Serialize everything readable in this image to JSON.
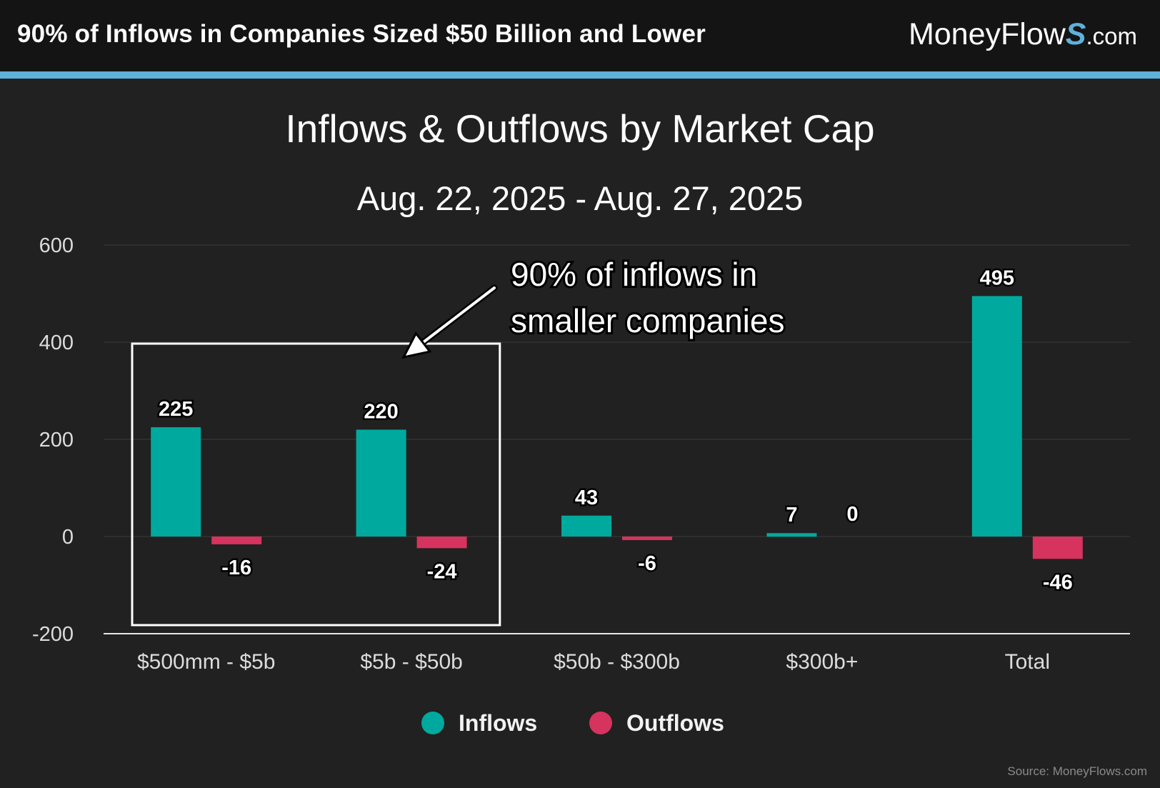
{
  "header": {
    "title": "90% of Inflows in Companies Sized $50 Billion and Lower",
    "brand_main": "MoneyFlow",
    "brand_s": "S",
    "brand_suffix": ".com"
  },
  "colors": {
    "inflows": "#00a99d",
    "outflows": "#d6335e",
    "accent": "#5fb1dc"
  },
  "chart_data": {
    "type": "bar",
    "title": "Inflows & Outflows by Market Cap",
    "subtitle": "Aug. 22, 2025 - Aug. 27, 2025",
    "categories": [
      "$500mm - $5b",
      "$5b - $50b",
      "$50b - $300b",
      "$300b+",
      "Total"
    ],
    "series": [
      {
        "name": "Inflows",
        "values": [
          225,
          220,
          43,
          7,
          495
        ],
        "labels": [
          "225",
          "220",
          "43",
          "7",
          "495"
        ]
      },
      {
        "name": "Outflows",
        "values": [
          -16,
          -24,
          -6,
          0,
          -46
        ],
        "labels": [
          "-16",
          "-24",
          "-6",
          "0",
          "-46"
        ]
      }
    ],
    "yticks": [
      600,
      400,
      200,
      0,
      -200
    ],
    "ylim": [
      -200,
      600
    ],
    "grid": true,
    "legend_position": "bottom",
    "annotation": {
      "line1": "90% of inflows in",
      "line2": "smaller companies",
      "highlight_categories": [
        "$500mm - $5b",
        "$5b - $50b"
      ]
    }
  },
  "footer": {
    "source": "Source: MoneyFlows.com"
  }
}
